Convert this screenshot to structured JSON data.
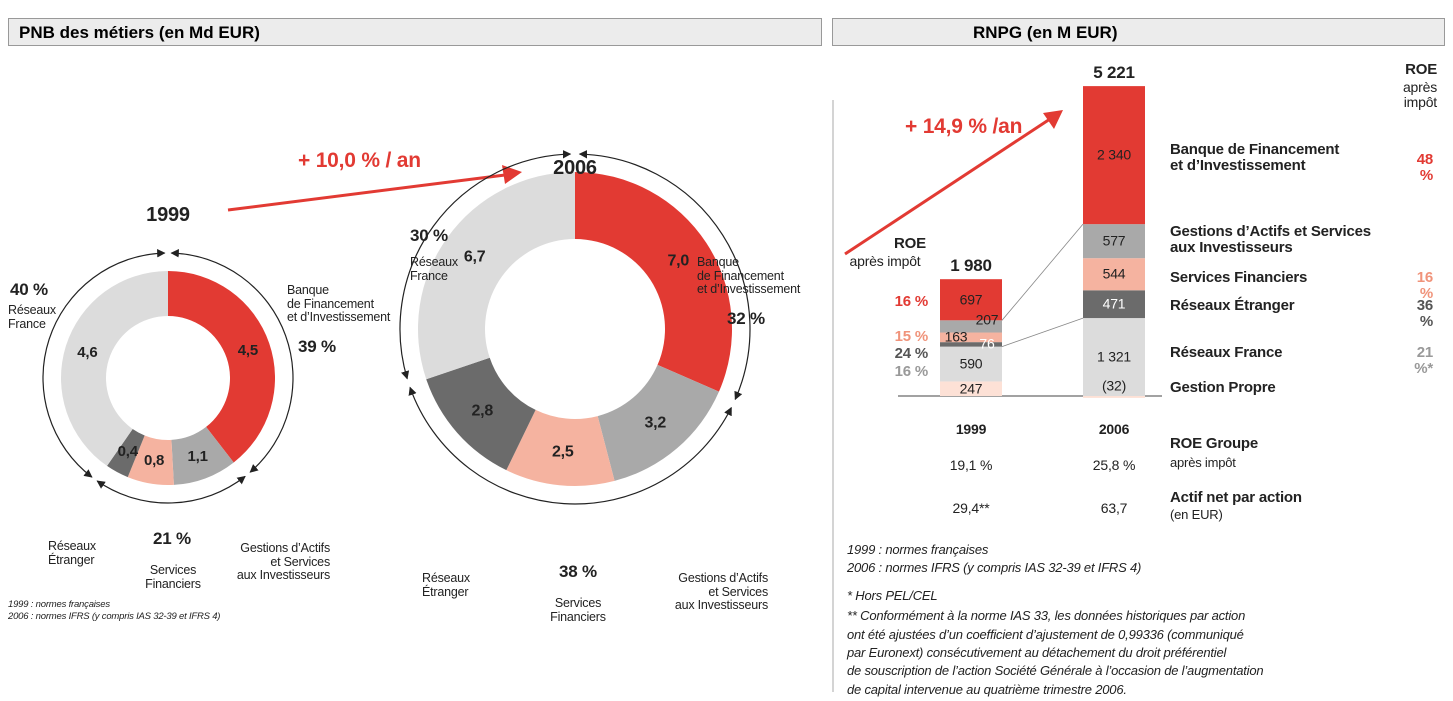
{
  "headers": {
    "left": "PNB des métiers (en Md EUR)",
    "right": "RNPG (en M EUR)"
  },
  "left_growth": "+ 10,0 % / an",
  "notes_left": [
    "1999 : normes françaises",
    "2006 : normes IFRS (y compris IAS 32-39 et IFRS 4)"
  ],
  "notes_right": [
    "1999 : normes françaises",
    "2006 : normes IFRS (y compris IAS 32-39 et IFRS 4)",
    "* Hors PEL/CEL",
    "** Conformément à la norme IAS 33, les données historiques par action",
    "ont été ajustées d’un coefficient d’ajustement de 0,99336 (communiqué",
    "par Euronext) consécutivement au détachement du droit préférentiel",
    "de souscription de l’action Société Générale à l’occasion de l’augmentation",
    "de capital intervenue au quatrième trimestre 2006."
  ],
  "chart_data": [
    {
      "type": "donut",
      "title": "1999",
      "categories": [
        "Banque\nde Financement\net d’Investissement",
        "Gestions d’Actifs\net Services\naux Investisseurs",
        "Services\nFinanciers",
        "Réseaux\nÉtranger",
        "Réseaux\nFrance"
      ],
      "values": [
        4.5,
        1.1,
        0.8,
        0.4,
        4.6
      ],
      "value_labels": [
        "4,5",
        "1,1",
        "0,8",
        "0,4",
        "4,6"
      ],
      "colors": [
        "#e23a33",
        "#a9a9a9",
        "#f5b3a0",
        "#6b6b6b",
        "#dcdcdc"
      ],
      "shares": [
        39,
        21,
        40
      ],
      "share_labels": [
        "39 %",
        "21 %",
        "40 %"
      ]
    },
    {
      "type": "donut",
      "title": "2006",
      "categories": [
        "Banque\nde Financement\net d’Investissement",
        "Gestions d’Actifs\net Services\naux Investisseurs",
        "Services\nFinanciers",
        "Réseaux\nÉtranger",
        "Réseaux\nFrance"
      ],
      "values": [
        7.0,
        3.2,
        2.5,
        2.8,
        6.7
      ],
      "value_labels": [
        "7,0",
        "3,2",
        "2,5",
        "2,8",
        "6,7"
      ],
      "colors": [
        "#e23a33",
        "#a9a9a9",
        "#f5b3a0",
        "#6b6b6b",
        "#dcdcdc"
      ],
      "shares": [
        32,
        38,
        30
      ],
      "share_labels": [
        "32 %",
        "38 %",
        "30 %"
      ]
    },
    {
      "type": "stacked_bar",
      "categories": [
        "1999",
        "2006"
      ],
      "totals": [
        1980,
        5221
      ],
      "total_labels": [
        "1 980",
        "5 221"
      ],
      "growth": "+ 14,9 % /an",
      "roe_title": "ROE",
      "roe_subtitle": "après impôt",
      "series": [
        {
          "name": "Gestion Propre",
          "color": "#fde1d6",
          "values": [
            247,
            -32
          ],
          "value_labels": [
            "247",
            "(32)"
          ]
        },
        {
          "name": "Réseaux France",
          "color": "#dcdcdc",
          "values": [
            590,
            1321
          ],
          "value_labels": [
            "590",
            "1 321"
          ],
          "roe": [
            "16 %",
            "21 %*"
          ]
        },
        {
          "name": "Réseaux Étranger",
          "color": "#6b6b6b",
          "values": [
            76,
            471
          ],
          "value_labels": [
            "76",
            "471"
          ],
          "roe": [
            "24 %",
            "36 %"
          ]
        },
        {
          "name": "Services Financiers",
          "color": "#f5b3a0",
          "values": [
            163,
            544
          ],
          "value_labels": [
            "163",
            "544"
          ],
          "roe": [
            "15 %",
            "16 %"
          ]
        },
        {
          "name": "Gestions d’Actifs et Services\naux Investisseurs",
          "color": "#a9a9a9",
          "values": [
            207,
            577
          ],
          "value_labels": [
            "207",
            "577"
          ]
        },
        {
          "name": "Banque de Financement\net d’Investissement",
          "color": "#e23a33",
          "values": [
            697,
            2340
          ],
          "value_labels": [
            "697",
            "2 340"
          ],
          "roe": [
            "16 %",
            "48 %"
          ]
        }
      ],
      "table": {
        "rows": [
          {
            "label": "ROE Groupe",
            "sublabel": "après impôt",
            "values": [
              "19,1 %",
              "25,8 %"
            ]
          },
          {
            "label": "Actif net par action",
            "sublabel": "(en EUR)",
            "values": [
              "29,4**",
              "63,7"
            ]
          }
        ]
      }
    }
  ]
}
